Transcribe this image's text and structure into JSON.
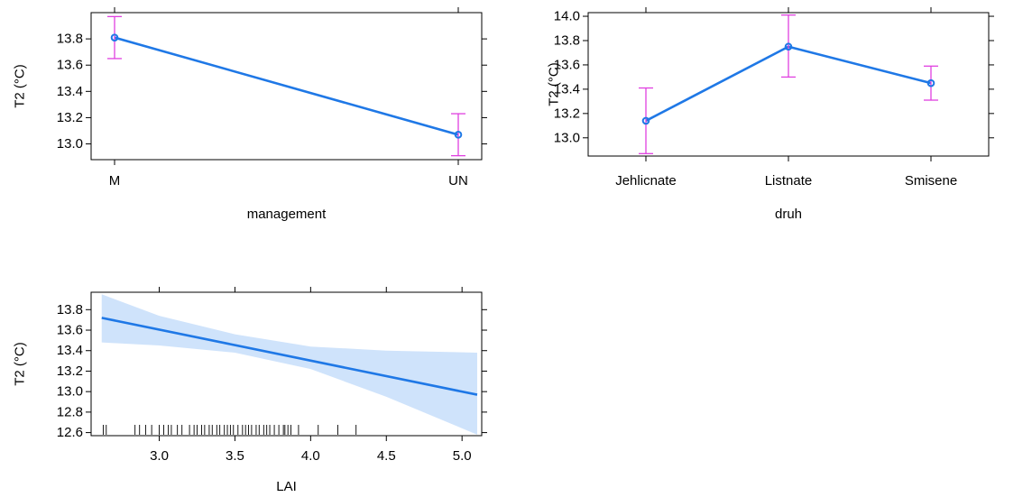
{
  "colors": {
    "line": "#1f78e6",
    "band": "#cfe3fb",
    "errorbar": "#e040e0",
    "axis": "#000000"
  },
  "chart_data": [
    {
      "type": "line",
      "panel": "management",
      "xlabel": "management",
      "ylabel": "T2 (°C)",
      "categories": [
        "M",
        "UN"
      ],
      "values": [
        13.81,
        13.07
      ],
      "lower": [
        13.65,
        12.91
      ],
      "upper": [
        13.97,
        13.23
      ],
      "ylim": [
        12.88,
        14.0
      ],
      "yticks": [
        "13.0",
        "13.2",
        "13.4",
        "13.6",
        "13.8"
      ],
      "grid": false
    },
    {
      "type": "line",
      "panel": "druh",
      "xlabel": "druh",
      "ylabel": "T2 (°C)",
      "categories": [
        "Jehlicnate",
        "Listnate",
        "Smisene"
      ],
      "values": [
        13.14,
        13.75,
        13.45
      ],
      "lower": [
        12.87,
        13.5,
        13.31
      ],
      "upper": [
        13.41,
        14.01,
        13.59
      ],
      "ylim": [
        12.85,
        14.03
      ],
      "yticks": [
        "13.0",
        "13.2",
        "13.4",
        "13.6",
        "13.8",
        "14.0"
      ],
      "grid": false
    },
    {
      "type": "line",
      "panel": "LAI",
      "xlabel": "LAI",
      "ylabel": "T2 (°C)",
      "x": [
        2.62,
        5.1
      ],
      "y": [
        13.72,
        12.97
      ],
      "band_x": [
        2.62,
        3.0,
        3.5,
        4.0,
        4.5,
        5.1
      ],
      "band_lower": [
        13.48,
        13.45,
        13.38,
        13.22,
        12.95,
        12.58
      ],
      "band_upper": [
        13.95,
        13.74,
        13.56,
        13.44,
        13.4,
        13.38
      ],
      "xlim": [
        2.55,
        5.13
      ],
      "ylim": [
        12.57,
        13.97
      ],
      "xticks": [
        "3.0",
        "3.5",
        "4.0",
        "4.5",
        "5.0"
      ],
      "yticks": [
        "12.6",
        "12.8",
        "13.0",
        "13.2",
        "13.4",
        "13.6",
        "13.8"
      ],
      "rug": [
        2.63,
        2.65,
        2.84,
        2.87,
        2.91,
        2.95,
        3.0,
        3.03,
        3.06,
        3.08,
        3.12,
        3.15,
        3.2,
        3.23,
        3.25,
        3.28,
        3.3,
        3.33,
        3.35,
        3.38,
        3.4,
        3.43,
        3.45,
        3.47,
        3.49,
        3.52,
        3.55,
        3.57,
        3.59,
        3.61,
        3.64,
        3.66,
        3.69,
        3.71,
        3.73,
        3.76,
        3.79,
        3.82,
        3.83,
        3.85,
        3.87,
        3.92,
        4.05,
        4.18,
        4.3
      ],
      "grid": false
    }
  ]
}
